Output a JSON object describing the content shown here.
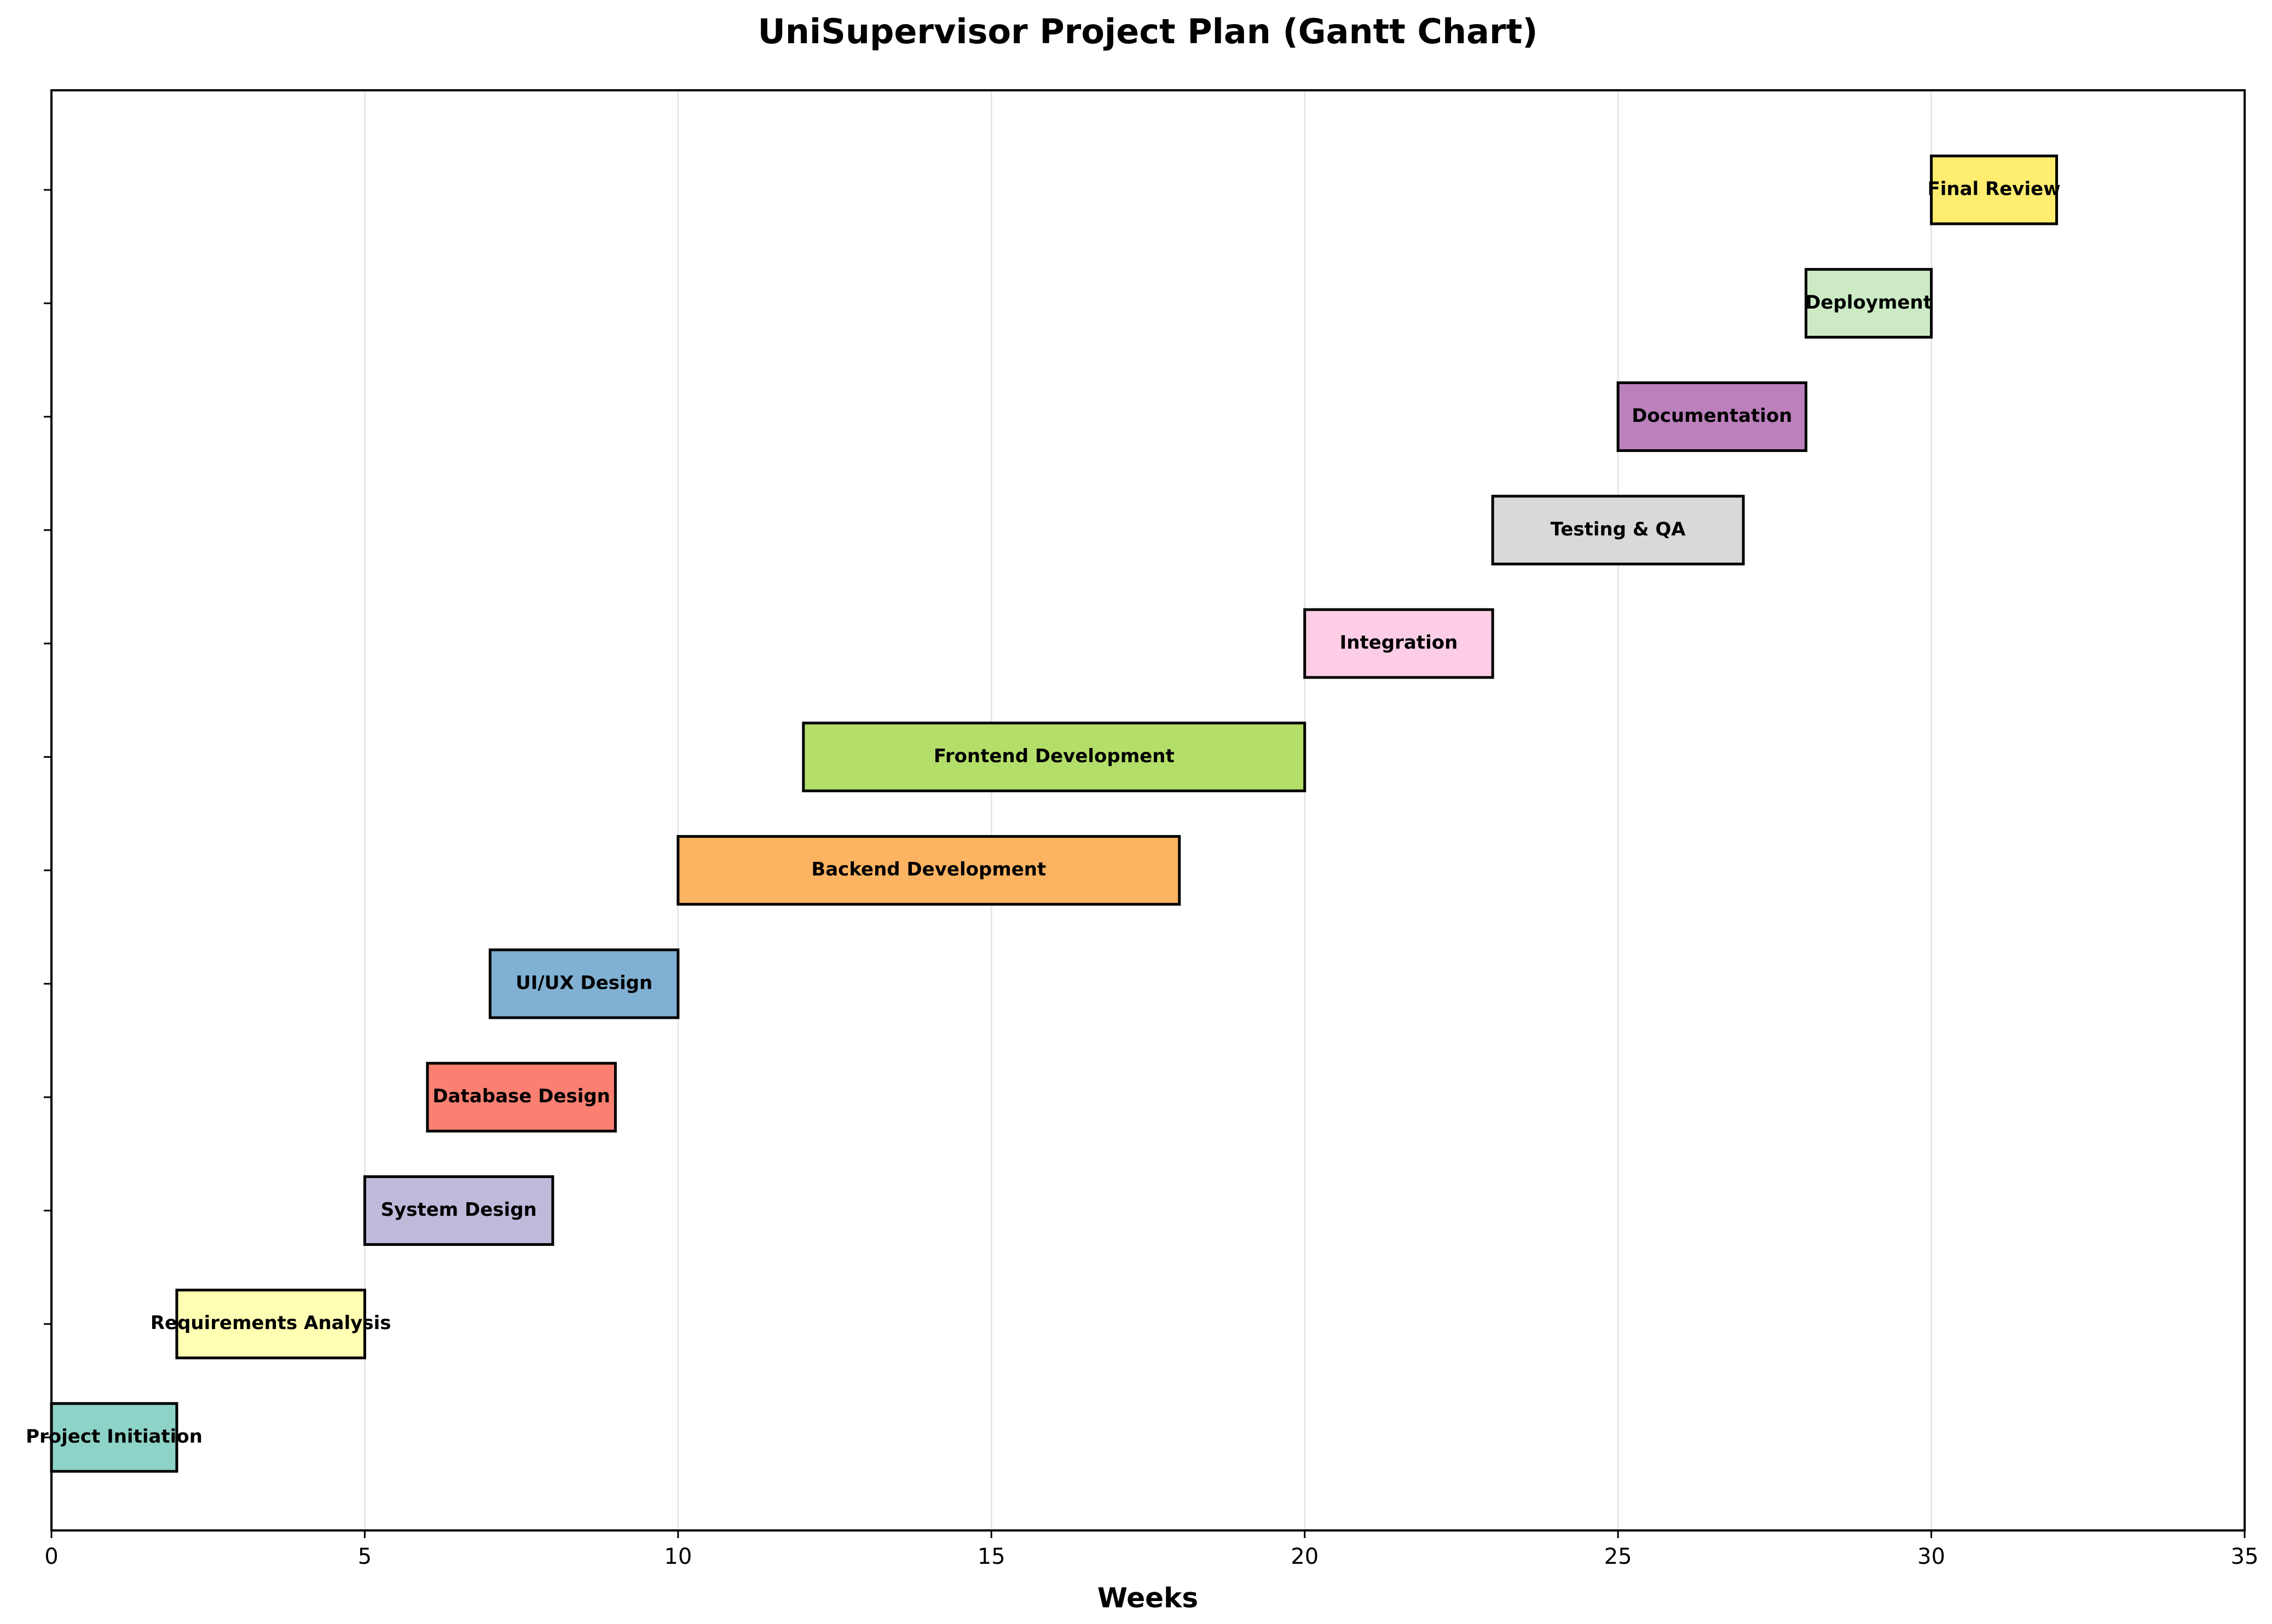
{
  "chart_data": {
    "type": "gantt",
    "title": "UniSupervisor Project Plan (Gantt Chart)",
    "xlabel": "Weeks",
    "ylabel": "",
    "xlim": [
      0,
      35
    ],
    "xticks": [
      0,
      5,
      10,
      15,
      20,
      25,
      30,
      35
    ],
    "grid": "vertical",
    "legend": "none",
    "tasks": [
      {
        "name": "Project Initiation",
        "start": 0,
        "end": 2,
        "color": "#8dd3c7"
      },
      {
        "name": "Requirements Analysis",
        "start": 2,
        "end": 5,
        "color": "#ffffb3"
      },
      {
        "name": "System Design",
        "start": 5,
        "end": 8,
        "color": "#bebada"
      },
      {
        "name": "Database Design",
        "start": 6,
        "end": 9,
        "color": "#fb8072"
      },
      {
        "name": "UI/UX Design",
        "start": 7,
        "end": 10,
        "color": "#80b1d3"
      },
      {
        "name": "Backend Development",
        "start": 10,
        "end": 18,
        "color": "#fdb462"
      },
      {
        "name": "Frontend Development",
        "start": 12,
        "end": 20,
        "color": "#b3de69"
      },
      {
        "name": "Integration",
        "start": 20,
        "end": 23,
        "color": "#fccde5"
      },
      {
        "name": "Testing & QA",
        "start": 23,
        "end": 27,
        "color": "#d9d9d9"
      },
      {
        "name": "Documentation",
        "start": 25,
        "end": 28,
        "color": "#bc80bd"
      },
      {
        "name": "Deployment",
        "start": 28,
        "end": 30,
        "color": "#ccebc5"
      },
      {
        "name": "Final Review",
        "start": 30,
        "end": 32,
        "color": "#ffed6f"
      }
    ]
  }
}
